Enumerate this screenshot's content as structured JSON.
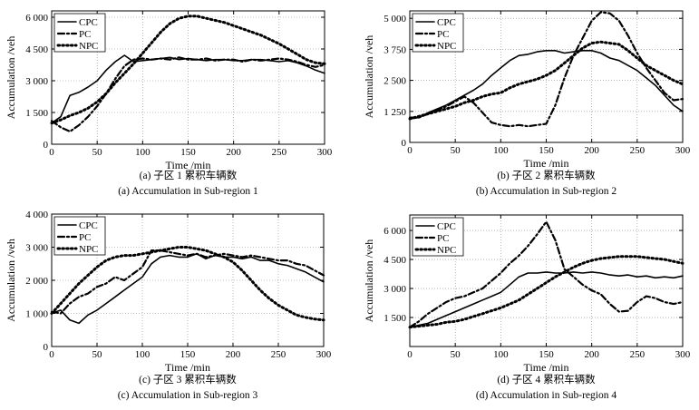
{
  "chart_data": [
    {
      "type": "line",
      "caption_zh": "(a) 子区 1 累积车辆数",
      "caption_en": "(a) Accumulation in Sub-region 1",
      "xlabel": "Time /min",
      "ylabel": "Accumulation /veh",
      "xlim": [
        0,
        300
      ],
      "ylim": [
        0,
        6300
      ],
      "xticks": [
        0,
        50,
        100,
        150,
        200,
        250,
        300
      ],
      "yticks": [
        0,
        1500,
        3000,
        4500,
        6000
      ],
      "ytick_labels": [
        "0",
        "1 500",
        "3 000",
        "4 500",
        "6 000"
      ],
      "legend_position": "top-left",
      "grid": true,
      "series": [
        {
          "name": "CPC",
          "style": "solid",
          "x": [
            0,
            10,
            20,
            30,
            40,
            50,
            60,
            70,
            80,
            90,
            100,
            110,
            120,
            130,
            140,
            150,
            160,
            170,
            180,
            190,
            200,
            210,
            220,
            230,
            240,
            250,
            260,
            270,
            280,
            290,
            300
          ],
          "y": [
            1000,
            1300,
            2300,
            2450,
            2700,
            3000,
            3500,
            3900,
            4200,
            3900,
            3950,
            4000,
            4050,
            4100,
            4000,
            4050,
            4000,
            3950,
            4000,
            4000,
            3950,
            3950,
            4000,
            4000,
            3950,
            3900,
            3950,
            3850,
            3700,
            3500,
            3350
          ]
        },
        {
          "name": "PC",
          "style": "dash-dot",
          "x": [
            0,
            10,
            20,
            30,
            40,
            50,
            60,
            70,
            80,
            90,
            100,
            110,
            120,
            130,
            140,
            150,
            160,
            170,
            180,
            190,
            200,
            210,
            220,
            230,
            240,
            250,
            260,
            270,
            280,
            290,
            300
          ],
          "y": [
            1100,
            800,
            600,
            900,
            1300,
            1800,
            2400,
            3100,
            3700,
            4000,
            4050,
            4000,
            4050,
            4000,
            4100,
            4000,
            4000,
            4050,
            3950,
            4000,
            4000,
            3900,
            4000,
            3950,
            4000,
            4050,
            4000,
            3900,
            3750,
            3650,
            3750
          ]
        },
        {
          "name": "NPC",
          "style": "dotted",
          "x": [
            0,
            10,
            20,
            30,
            40,
            50,
            60,
            70,
            80,
            90,
            100,
            110,
            120,
            130,
            140,
            150,
            160,
            170,
            180,
            190,
            200,
            210,
            220,
            230,
            240,
            250,
            260,
            270,
            280,
            290,
            300
          ],
          "y": [
            1000,
            1150,
            1350,
            1500,
            1700,
            2000,
            2400,
            2900,
            3350,
            3800,
            4300,
            4800,
            5300,
            5700,
            5950,
            6050,
            6050,
            5950,
            5850,
            5750,
            5600,
            5450,
            5300,
            5150,
            4950,
            4750,
            4500,
            4250,
            4000,
            3850,
            3800
          ]
        }
      ]
    },
    {
      "type": "line",
      "caption_zh": "(b) 子区 2 累积车辆数",
      "caption_en": "(b) Accumulation in Sub-region 2",
      "xlabel": "Time /min",
      "ylabel": "Accumulation /veh",
      "xlim": [
        0,
        300
      ],
      "ylim": [
        0,
        5300
      ],
      "xticks": [
        0,
        50,
        100,
        150,
        200,
        250,
        300
      ],
      "yticks": [
        0,
        1250,
        2500,
        3750,
        5000
      ],
      "ytick_labels": [
        "0",
        "1 250",
        "2 500",
        "3 750",
        "5 000"
      ],
      "legend_position": "top-left",
      "grid": true,
      "series": [
        {
          "name": "CPC",
          "style": "solid",
          "x": [
            0,
            10,
            20,
            30,
            40,
            50,
            60,
            70,
            80,
            90,
            100,
            110,
            120,
            130,
            140,
            150,
            160,
            170,
            180,
            190,
            200,
            210,
            220,
            230,
            240,
            250,
            260,
            270,
            280,
            290,
            300
          ],
          "y": [
            950,
            1000,
            1200,
            1350,
            1500,
            1700,
            1900,
            2100,
            2350,
            2700,
            3000,
            3300,
            3500,
            3550,
            3650,
            3700,
            3700,
            3600,
            3650,
            3700,
            3700,
            3600,
            3400,
            3300,
            3100,
            2900,
            2600,
            2300,
            1900,
            1500,
            1250
          ]
        },
        {
          "name": "PC",
          "style": "dash-dot",
          "x": [
            0,
            10,
            20,
            30,
            40,
            50,
            60,
            70,
            80,
            90,
            100,
            110,
            120,
            130,
            140,
            150,
            160,
            170,
            180,
            190,
            200,
            210,
            220,
            230,
            240,
            250,
            260,
            270,
            280,
            290,
            300
          ],
          "y": [
            1000,
            1000,
            1150,
            1300,
            1450,
            1650,
            1850,
            1600,
            1200,
            800,
            700,
            650,
            700,
            650,
            700,
            750,
            1500,
            2600,
            3500,
            4200,
            4900,
            5250,
            5200,
            4900,
            4300,
            3600,
            3000,
            2500,
            2000,
            1700,
            1750
          ]
        },
        {
          "name": "NPC",
          "style": "dotted",
          "x": [
            0,
            10,
            20,
            30,
            40,
            50,
            60,
            70,
            80,
            90,
            100,
            110,
            120,
            130,
            140,
            150,
            160,
            170,
            180,
            190,
            200,
            210,
            220,
            230,
            240,
            250,
            260,
            270,
            280,
            290,
            300
          ],
          "y": [
            950,
            1050,
            1150,
            1250,
            1350,
            1450,
            1600,
            1700,
            1850,
            1950,
            2000,
            2200,
            2350,
            2450,
            2550,
            2700,
            2900,
            3200,
            3500,
            3800,
            4000,
            4050,
            4000,
            3950,
            3700,
            3400,
            3100,
            2900,
            2700,
            2500,
            2350
          ]
        }
      ]
    },
    {
      "type": "line",
      "caption_zh": "(c) 子区 3 累积车辆数",
      "caption_en": "(c) Accumulation in Sub-region 3",
      "xlabel": "Time /min",
      "ylabel": "Accumulation /veh",
      "xlim": [
        0,
        300
      ],
      "ylim": [
        0,
        4000
      ],
      "xticks": [
        0,
        50,
        100,
        150,
        200,
        250,
        300
      ],
      "yticks": [
        0,
        1000,
        2000,
        3000,
        4000
      ],
      "ytick_labels": [
        "0",
        "1 000",
        "2 000",
        "3 000",
        "4 000"
      ],
      "legend_position": "top-left",
      "grid": true,
      "series": [
        {
          "name": "CPC",
          "style": "solid",
          "x": [
            0,
            10,
            20,
            30,
            40,
            50,
            60,
            70,
            80,
            90,
            100,
            110,
            120,
            130,
            140,
            150,
            160,
            170,
            180,
            190,
            200,
            210,
            220,
            230,
            240,
            250,
            260,
            270,
            280,
            290,
            300
          ],
          "y": [
            1000,
            1100,
            800,
            700,
            950,
            1100,
            1300,
            1500,
            1700,
            1900,
            2100,
            2500,
            2700,
            2750,
            2700,
            2700,
            2800,
            2650,
            2750,
            2700,
            2700,
            2650,
            2700,
            2600,
            2600,
            2500,
            2450,
            2350,
            2250,
            2100,
            1950
          ]
        },
        {
          "name": "PC",
          "style": "dash-dot",
          "x": [
            0,
            10,
            20,
            30,
            40,
            50,
            60,
            70,
            80,
            90,
            100,
            110,
            120,
            130,
            140,
            150,
            160,
            170,
            180,
            190,
            200,
            210,
            220,
            230,
            240,
            250,
            260,
            270,
            280,
            290,
            300
          ],
          "y": [
            1050,
            1000,
            1300,
            1500,
            1600,
            1800,
            1900,
            2100,
            2000,
            2200,
            2400,
            2900,
            2900,
            2850,
            2800,
            2750,
            2800,
            2700,
            2750,
            2800,
            2750,
            2700,
            2750,
            2700,
            2650,
            2600,
            2600,
            2500,
            2450,
            2300,
            2150
          ]
        },
        {
          "name": "NPC",
          "style": "dotted",
          "x": [
            0,
            10,
            20,
            30,
            40,
            50,
            60,
            70,
            80,
            90,
            100,
            110,
            120,
            130,
            140,
            150,
            160,
            170,
            180,
            190,
            200,
            210,
            220,
            230,
            240,
            250,
            260,
            270,
            280,
            290,
            300
          ],
          "y": [
            1000,
            1300,
            1600,
            1900,
            2150,
            2400,
            2600,
            2700,
            2750,
            2750,
            2800,
            2850,
            2900,
            2950,
            3000,
            3000,
            2950,
            2900,
            2800,
            2700,
            2550,
            2300,
            2000,
            1700,
            1450,
            1250,
            1100,
            950,
            880,
            830,
            800
          ]
        }
      ]
    },
    {
      "type": "line",
      "caption_zh": "(d) 子区 4 累积车辆数",
      "caption_en": "(d) Accumulation in Sub-region 4",
      "xlabel": "Time /min",
      "ylabel": "Accumulation /veh",
      "xlim": [
        0,
        300
      ],
      "ylim": [
        0,
        6800
      ],
      "xticks": [
        0,
        50,
        100,
        150,
        200,
        250,
        300
      ],
      "yticks": [
        1500,
        3000,
        4500,
        6000
      ],
      "ytick_labels": [
        "1 500",
        "3 000",
        "4 500",
        "6 000"
      ],
      "legend_position": "top-left",
      "grid": true,
      "series": [
        {
          "name": "CPC",
          "style": "solid",
          "x": [
            0,
            10,
            20,
            30,
            40,
            50,
            60,
            70,
            80,
            90,
            100,
            110,
            120,
            130,
            140,
            150,
            160,
            170,
            180,
            190,
            200,
            210,
            220,
            230,
            240,
            250,
            260,
            270,
            280,
            290,
            300
          ],
          "y": [
            1000,
            1100,
            1200,
            1400,
            1600,
            1800,
            2000,
            2200,
            2400,
            2600,
            2800,
            3200,
            3600,
            3800,
            3800,
            3850,
            3800,
            3800,
            3850,
            3800,
            3850,
            3800,
            3700,
            3650,
            3700,
            3600,
            3650,
            3550,
            3600,
            3550,
            3650
          ]
        },
        {
          "name": "PC",
          "style": "dash-dot",
          "x": [
            0,
            10,
            20,
            30,
            40,
            50,
            60,
            70,
            80,
            90,
            100,
            110,
            120,
            130,
            140,
            150,
            160,
            170,
            180,
            190,
            200,
            210,
            220,
            230,
            240,
            250,
            260,
            270,
            280,
            290,
            300
          ],
          "y": [
            1000,
            1300,
            1700,
            2000,
            2300,
            2500,
            2600,
            2800,
            3000,
            3400,
            3800,
            4300,
            4700,
            5200,
            5800,
            6450,
            5500,
            4000,
            3600,
            3200,
            2900,
            2700,
            2200,
            1800,
            1850,
            2300,
            2600,
            2500,
            2300,
            2200,
            2300
          ]
        },
        {
          "name": "NPC",
          "style": "dotted",
          "x": [
            0,
            10,
            20,
            30,
            40,
            50,
            60,
            70,
            80,
            90,
            100,
            110,
            120,
            130,
            140,
            150,
            160,
            170,
            180,
            190,
            200,
            210,
            220,
            230,
            240,
            250,
            260,
            270,
            280,
            290,
            300
          ],
          "y": [
            1000,
            1050,
            1100,
            1150,
            1250,
            1300,
            1400,
            1550,
            1700,
            1850,
            2000,
            2200,
            2400,
            2700,
            3000,
            3300,
            3600,
            3850,
            4100,
            4300,
            4450,
            4550,
            4600,
            4650,
            4650,
            4650,
            4600,
            4550,
            4500,
            4400,
            4300
          ]
        }
      ]
    }
  ]
}
